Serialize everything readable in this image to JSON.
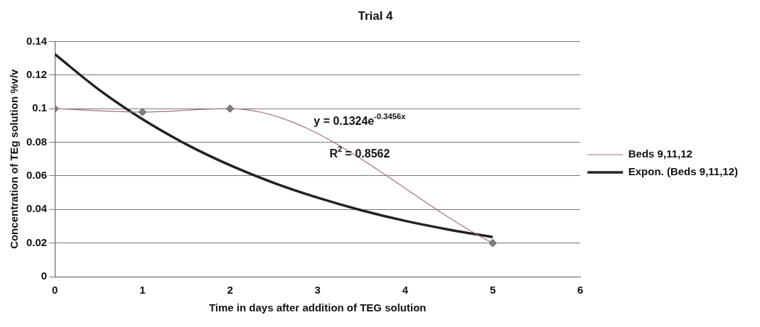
{
  "chart_data": {
    "type": "line",
    "title": "Trial 4",
    "xlabel": "Time in days after addition of TEG solution",
    "ylabel": "Concentration of TEg solution %v/v",
    "series": [
      {
        "name": "Beds 9,11,12",
        "color": "#a07078",
        "x": [
          0,
          1,
          2,
          5
        ],
        "values": [
          0.1,
          0.098,
          0.1,
          0.02
        ],
        "marker": "diamond"
      },
      {
        "name": "Expon. (Beds 9,11,12)",
        "color": "#222222",
        "x": [
          0,
          0.5,
          1,
          1.5,
          2,
          2.5,
          3,
          3.5,
          4,
          4.5,
          5
        ],
        "values": [
          0.1324,
          0.1114,
          0.0937,
          0.0788,
          0.0663,
          0.0558,
          0.047,
          0.0395,
          0.0332,
          0.028,
          0.0235
        ],
        "marker": "none"
      }
    ],
    "annotations": [
      "y = 0.1324e$^{-0.3456x}$",
      "R$^{2}$ = 0.8562"
    ],
    "xlim": [
      0,
      6
    ],
    "xticks": [
      0,
      1,
      2,
      3,
      4,
      5,
      6
    ],
    "ylim": [
      0,
      0.14
    ],
    "yticks": [
      0,
      0.02,
      0.04,
      0.06,
      0.08,
      0.1,
      0.12,
      0.14
    ],
    "grid": "y",
    "legend": "right"
  }
}
